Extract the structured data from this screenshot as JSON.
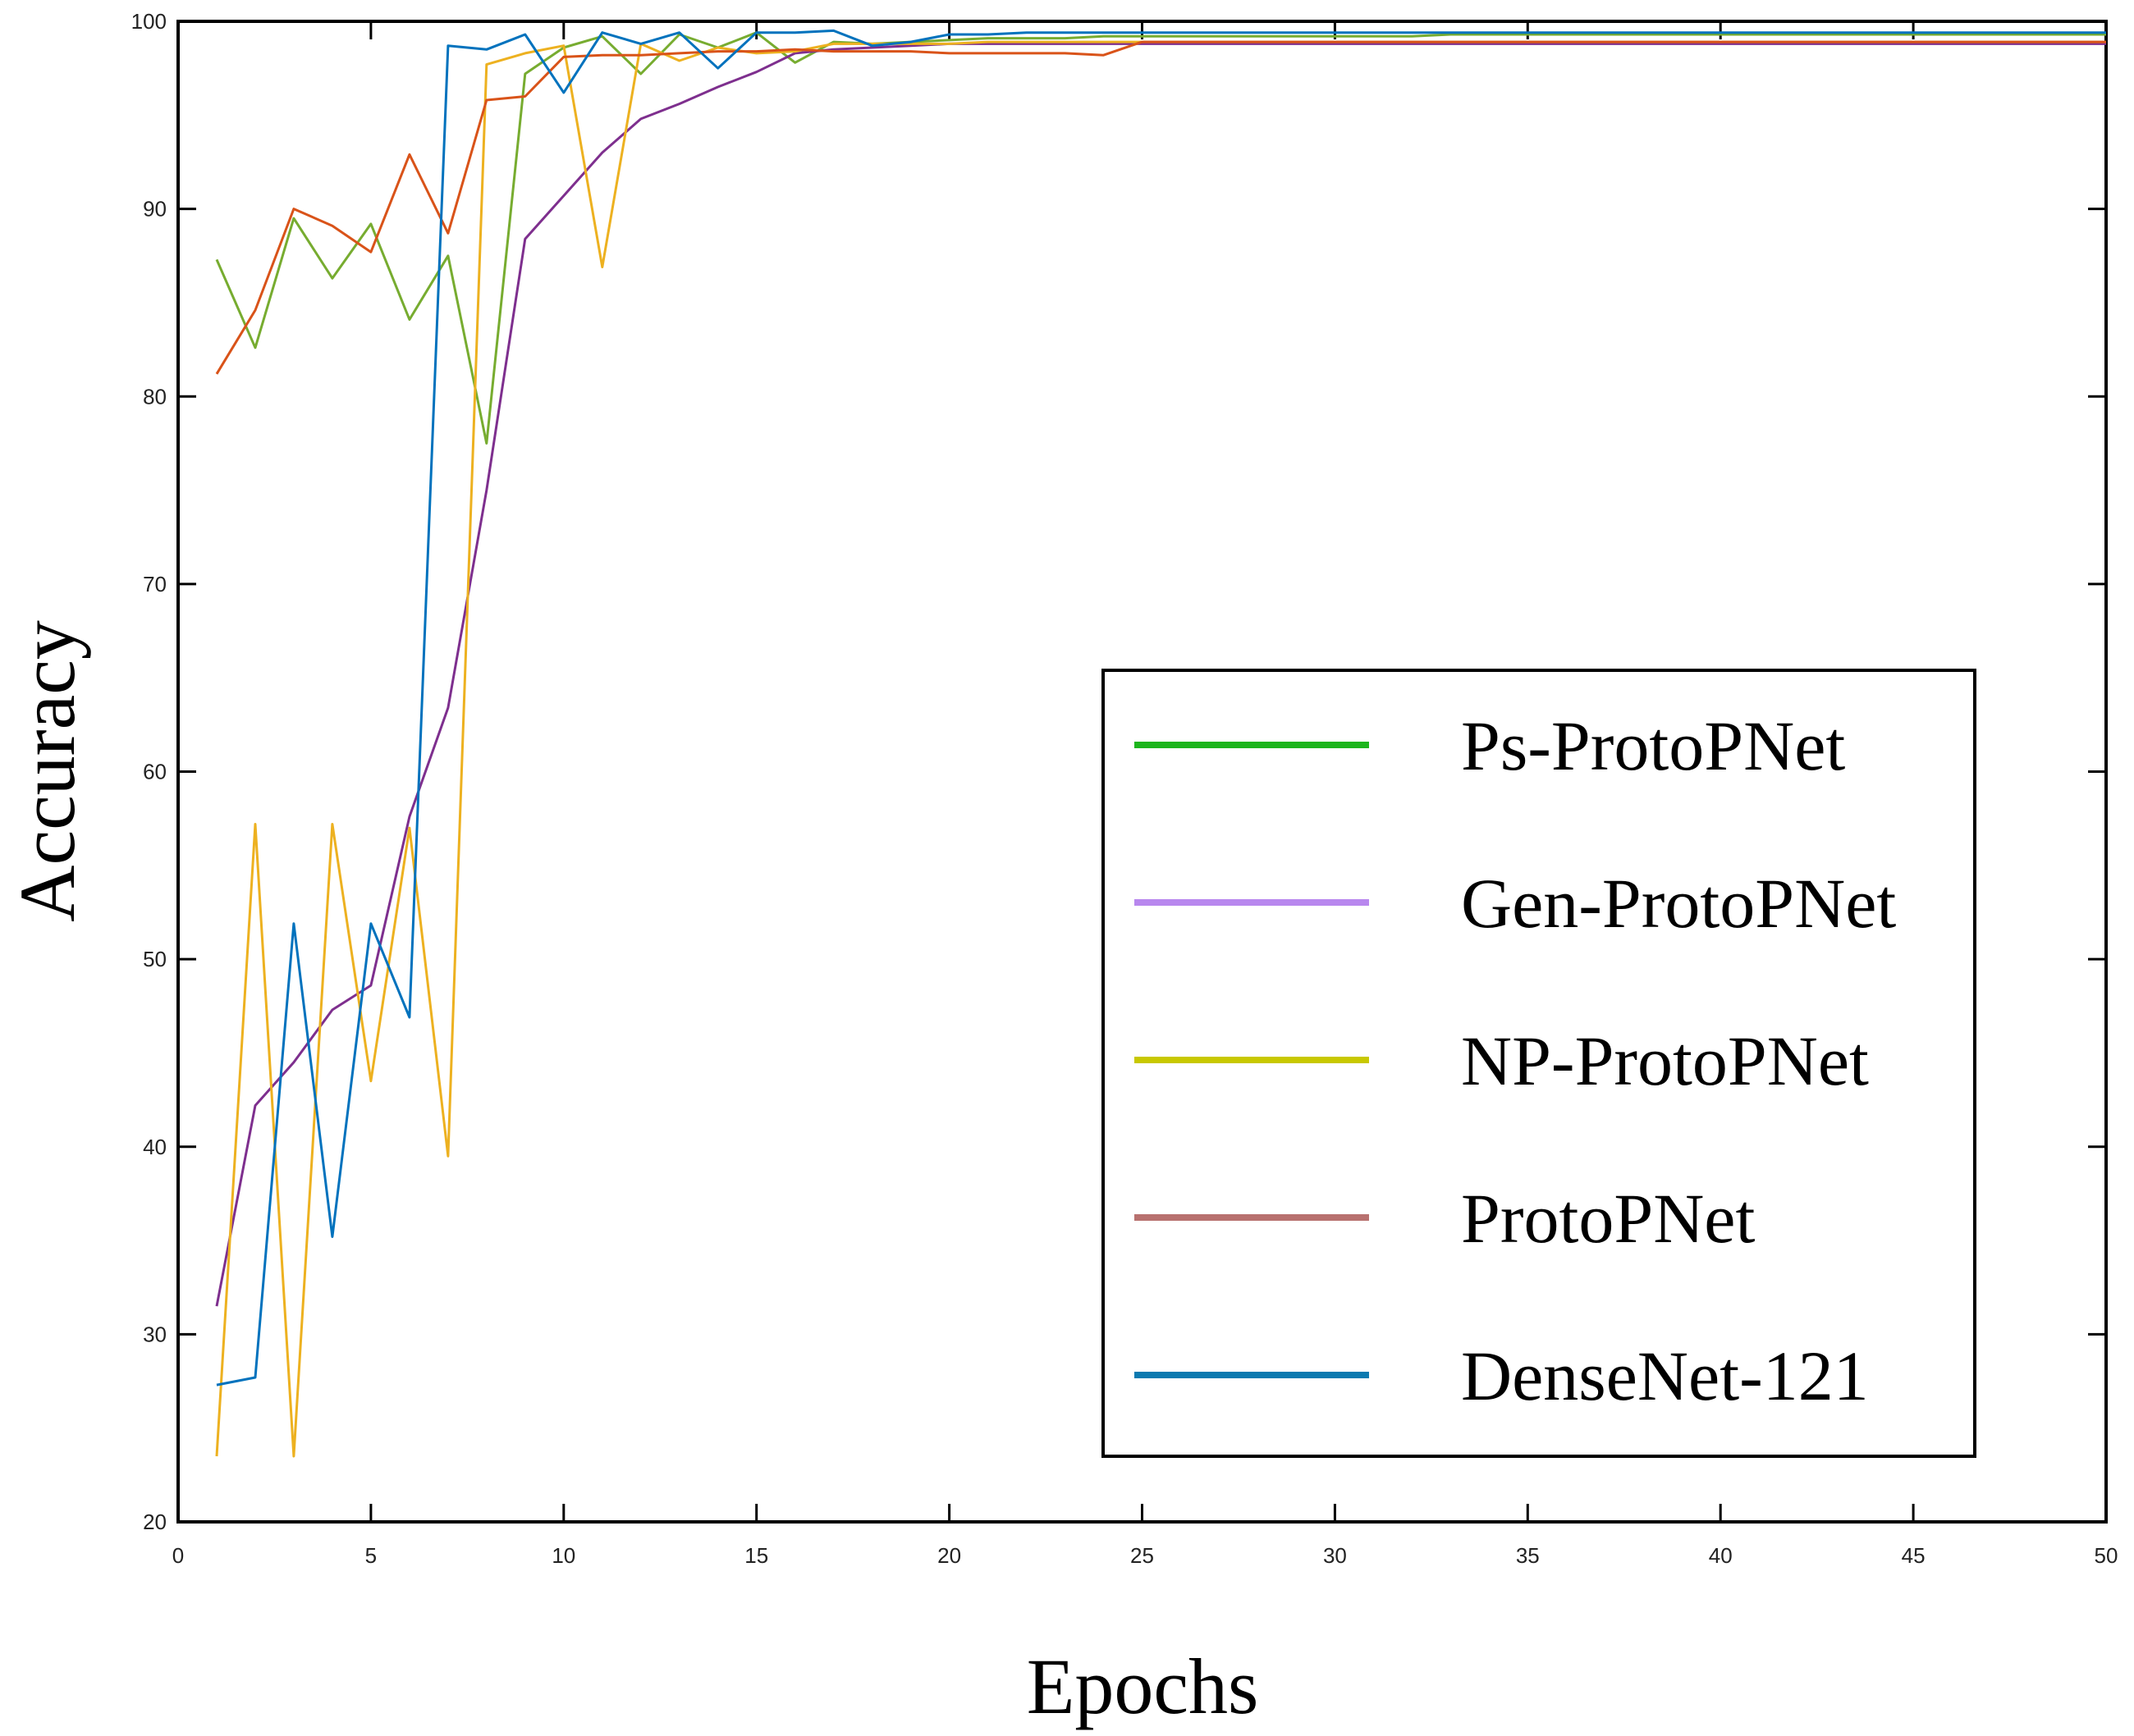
{
  "chart_data": {
    "type": "line",
    "title": "",
    "xlabel": "Epochs",
    "ylabel": "Accuracy",
    "xlim": [
      0,
      50
    ],
    "ylim": [
      20,
      100
    ],
    "x_ticks": [
      0,
      5,
      10,
      15,
      20,
      25,
      30,
      35,
      40,
      45,
      50
    ],
    "y_ticks": [
      20,
      30,
      40,
      50,
      60,
      70,
      80,
      90,
      100
    ],
    "grid": false,
    "legend_position": "center-right",
    "legend": [
      {
        "name": "Ps-ProtoPNet",
        "color": "#1db51d"
      },
      {
        "name": "Gen-ProtoPNet",
        "color": "#b887ee"
      },
      {
        "name": "NP-ProtoPNet",
        "color": "#c8c800"
      },
      {
        "name": "ProtoPNet",
        "color": "#b8716f"
      },
      {
        "name": "DenseNet-121",
        "color": "#0c7ab0"
      }
    ],
    "x": [
      1,
      2,
      3,
      4,
      5,
      6,
      7,
      8,
      9,
      10,
      11,
      12,
      13,
      14,
      15,
      16,
      17,
      18,
      19,
      20,
      21,
      22,
      23,
      24,
      25,
      26,
      27,
      28,
      29,
      30,
      31,
      32,
      33,
      34,
      35,
      36,
      37,
      38,
      39,
      40,
      41,
      42,
      43,
      44,
      45,
      46,
      47,
      48,
      49,
      50
    ],
    "series": [
      {
        "name": "Ps-ProtoPNet",
        "color": "#77ac30",
        "values": [
          87.3,
          82.6,
          89.5,
          86.3,
          89.2,
          84.1,
          87.5,
          77.5,
          97.2,
          98.6,
          99.2,
          97.2,
          99.3,
          98.6,
          99.4,
          97.8,
          98.9,
          98.8,
          98.9,
          99.0,
          99.1,
          99.1,
          99.1,
          99.2,
          99.2,
          99.2,
          99.2,
          99.2,
          99.2,
          99.2,
          99.2,
          99.2,
          99.3,
          99.3,
          99.3,
          99.3,
          99.3,
          99.3,
          99.3,
          99.3,
          99.3,
          99.3,
          99.3,
          99.3,
          99.3,
          99.3,
          99.3,
          99.3,
          99.3,
          99.3
        ]
      },
      {
        "name": "Gen-ProtoPNet",
        "color": "#7e2f8e",
        "values": [
          31.5,
          42.2,
          44.5,
          47.3,
          48.6,
          57.6,
          63.4,
          75.0,
          88.4,
          90.7,
          93.0,
          94.8,
          95.6,
          96.5,
          97.3,
          98.3,
          98.5,
          98.6,
          98.7,
          98.8,
          98.8,
          98.8,
          98.8,
          98.8,
          98.8,
          98.8,
          98.8,
          98.8,
          98.8,
          98.8,
          98.8,
          98.8,
          98.8,
          98.8,
          98.8,
          98.8,
          98.8,
          98.8,
          98.8,
          98.8,
          98.8,
          98.8,
          98.8,
          98.8,
          98.8,
          98.8,
          98.8,
          98.8,
          98.8,
          98.8
        ]
      },
      {
        "name": "NP-ProtoPNet",
        "color": "#edb120",
        "values": [
          23.5,
          57.2,
          23.5,
          57.2,
          43.5,
          57.0,
          39.5,
          97.7,
          98.3,
          98.7,
          86.9,
          98.8,
          97.9,
          98.6,
          98.3,
          98.4,
          98.8,
          98.8,
          98.8,
          98.8,
          98.9,
          98.9,
          98.9,
          98.9,
          98.9,
          98.9,
          98.9,
          98.9,
          98.9,
          98.9,
          98.9,
          98.9,
          98.9,
          98.9,
          98.9,
          98.9,
          98.9,
          98.9,
          98.9,
          98.9,
          98.9,
          98.9,
          98.9,
          98.9,
          98.9,
          98.9,
          98.9,
          98.9,
          98.9,
          98.9
        ]
      },
      {
        "name": "ProtoPNet",
        "color": "#d95319",
        "values": [
          81.2,
          84.6,
          90.0,
          89.1,
          87.7,
          92.9,
          88.7,
          95.8,
          96.0,
          98.1,
          98.2,
          98.2,
          98.3,
          98.4,
          98.4,
          98.5,
          98.4,
          98.4,
          98.4,
          98.3,
          98.3,
          98.3,
          98.3,
          98.2,
          98.9,
          98.9,
          98.9,
          98.9,
          98.9,
          98.9,
          98.9,
          98.9,
          98.9,
          98.9,
          98.9,
          98.9,
          98.9,
          98.9,
          98.9,
          98.9,
          98.9,
          98.9,
          98.9,
          98.9,
          98.9,
          98.9,
          98.9,
          98.9,
          98.9,
          98.9
        ]
      },
      {
        "name": "DenseNet-121",
        "color": "#0072bd",
        "values": [
          27.3,
          27.7,
          51.9,
          35.2,
          51.9,
          46.9,
          98.7,
          98.5,
          99.3,
          96.2,
          99.4,
          98.8,
          99.4,
          97.5,
          99.4,
          99.4,
          99.5,
          98.7,
          98.9,
          99.3,
          99.3,
          99.4,
          99.4,
          99.4,
          99.4,
          99.4,
          99.4,
          99.4,
          99.4,
          99.4,
          99.4,
          99.4,
          99.4,
          99.4,
          99.4,
          99.4,
          99.4,
          99.4,
          99.4,
          99.4,
          99.4,
          99.4,
          99.4,
          99.4,
          99.4,
          99.4,
          99.4,
          99.4,
          99.4,
          99.4
        ]
      }
    ]
  }
}
